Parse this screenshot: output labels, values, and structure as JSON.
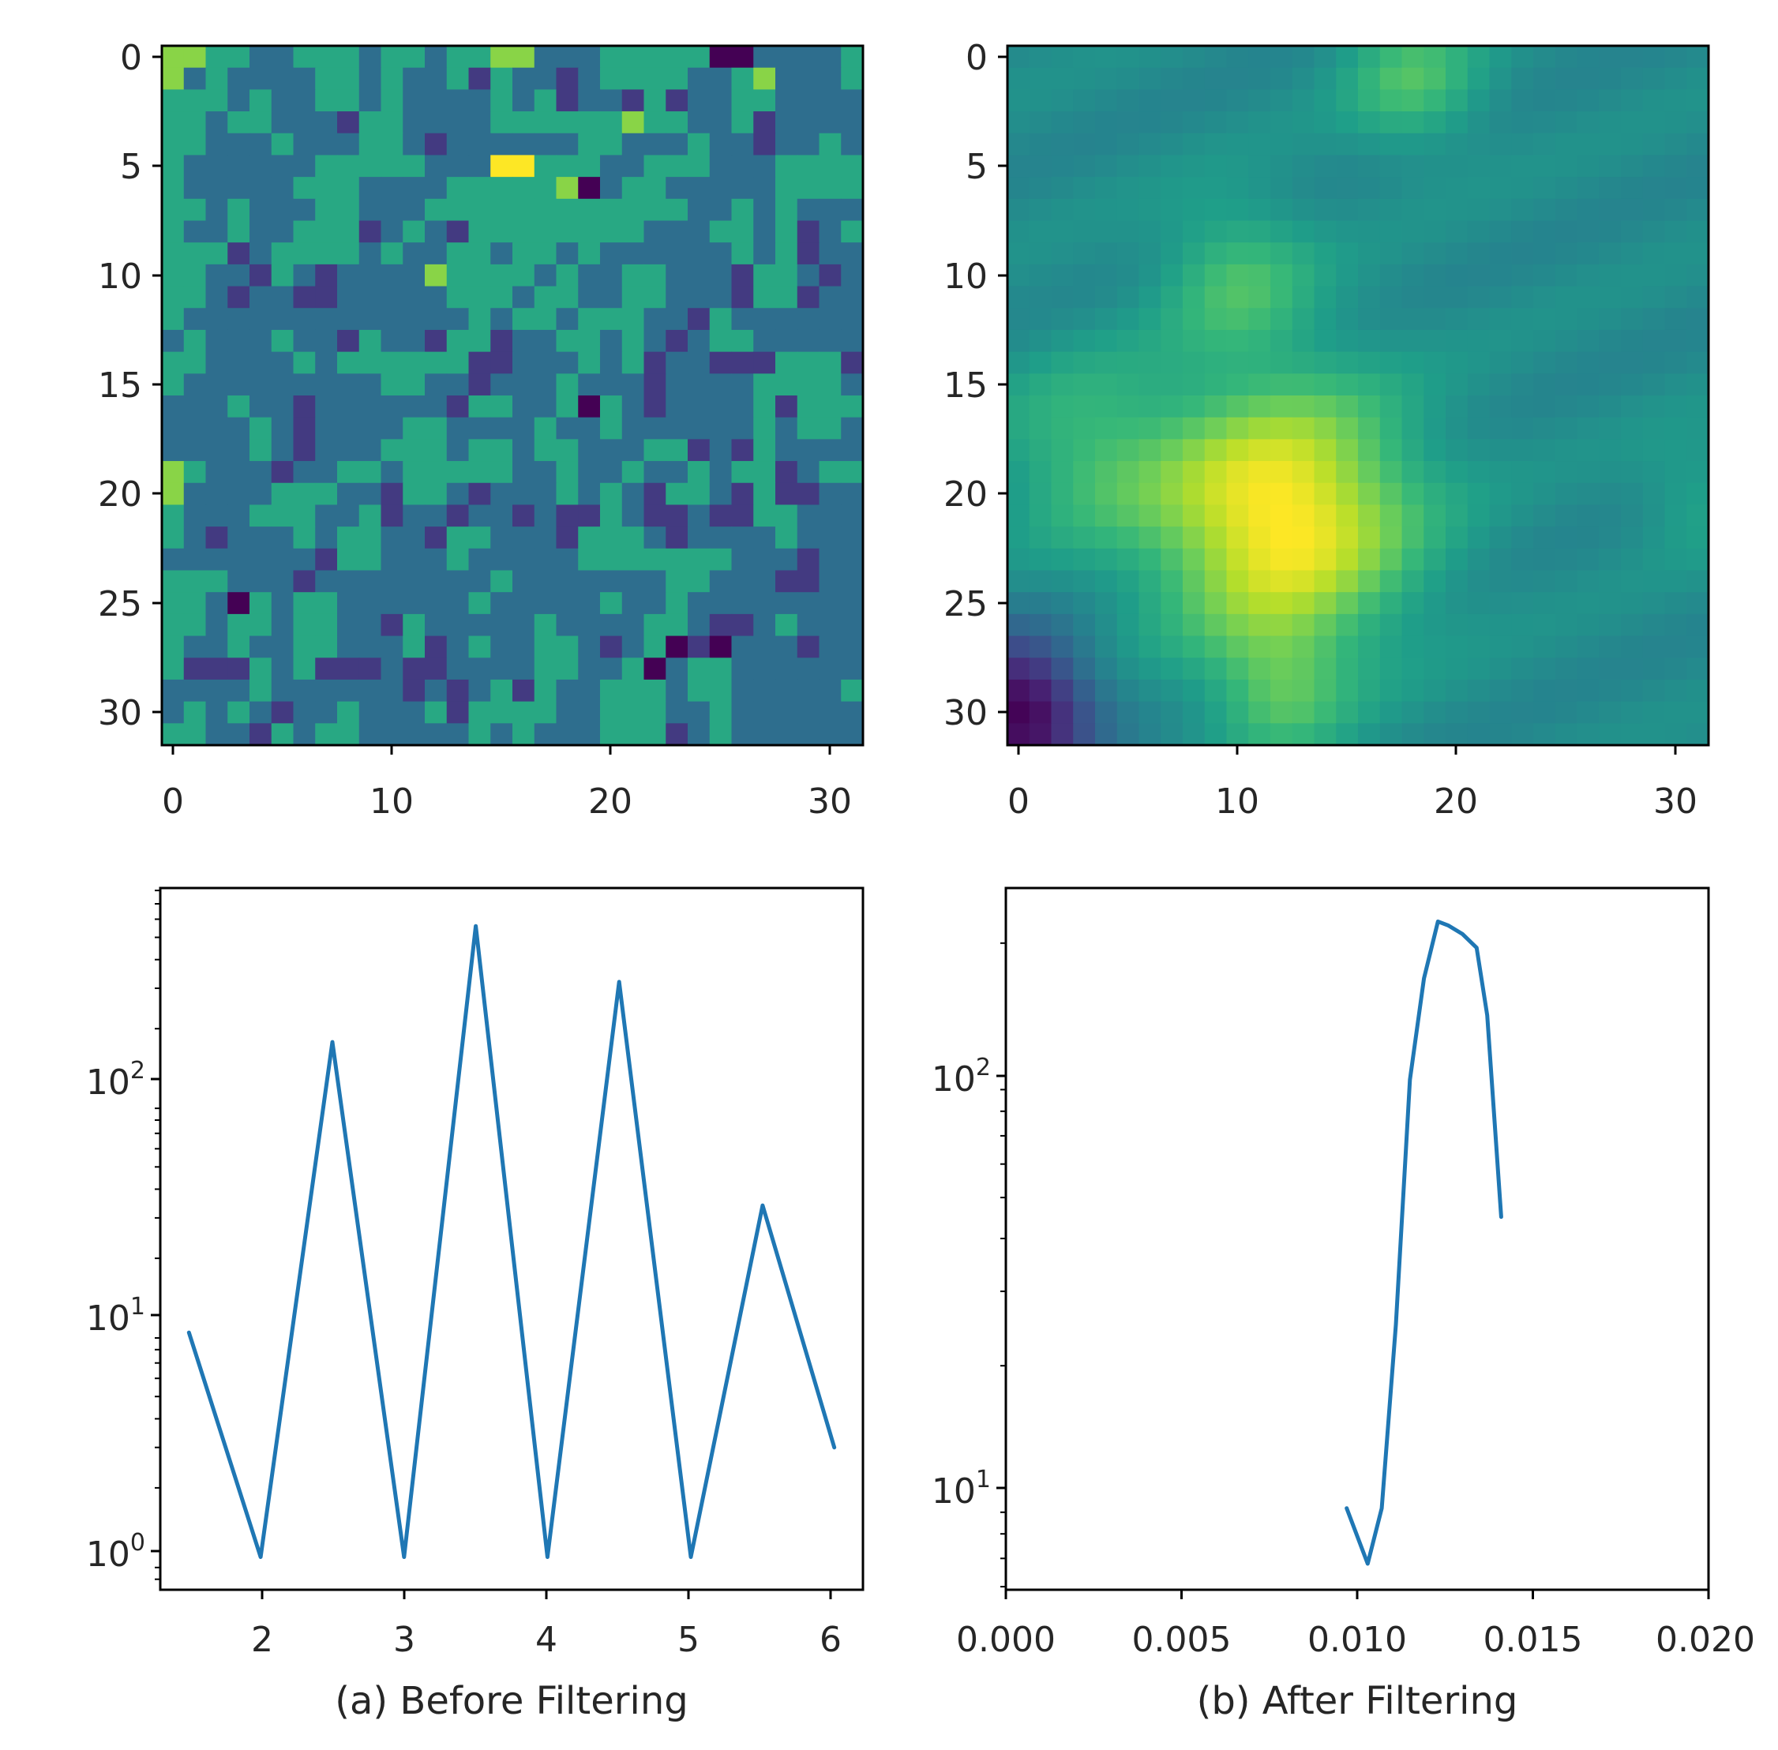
{
  "figure": {
    "caption_a": "(a) Before Filtering",
    "caption_b": "(b) After Filtering"
  },
  "chart_data": [
    {
      "type": "heatmap",
      "panel": "top-left",
      "rows": 32,
      "cols": 32,
      "colormap": "viridis",
      "description_of_data": "discrete noisy field, mostly teal/green values with scattered dark and bright cells",
      "xticks": [
        "0",
        "10",
        "20",
        "30"
      ],
      "yticks": [
        "0",
        "5",
        "10",
        "15",
        "20",
        "25",
        "30"
      ],
      "xlim": [
        -0.5,
        31.5
      ],
      "ylim": [
        31.5,
        -0.5
      ],
      "levels": [
        0,
        1,
        2,
        3,
        4,
        5
      ],
      "bright_cells": [
        [
          5,
          15
        ],
        [
          5,
          16
        ]
      ],
      "dark_cells": [
        [
          0,
          25
        ],
        [
          0,
          26
        ],
        [
          6,
          19
        ],
        [
          16,
          19
        ],
        [
          25,
          3
        ],
        [
          27,
          23
        ],
        [
          27,
          25
        ],
        [
          28,
          22
        ]
      ]
    },
    {
      "type": "heatmap",
      "panel": "top-right",
      "rows": 32,
      "cols": 32,
      "colormap": "viridis",
      "description_of_data": "smoothed field with bright peak near row 21, col 12 and dark corner near row 30, col 0",
      "xticks": [
        "0",
        "10",
        "20",
        "30"
      ],
      "yticks": [
        "0",
        "5",
        "10",
        "15",
        "20",
        "25",
        "30"
      ],
      "xlim": [
        -0.5,
        31.5
      ],
      "ylim": [
        31.5,
        -0.5
      ],
      "peak": [
        21,
        12
      ],
      "secondary_peaks": [
        [
          1,
          18
        ],
        [
          10,
          10
        ],
        [
          29,
          12
        ],
        [
          20,
          31
        ]
      ],
      "low_corner": [
        30,
        0
      ]
    },
    {
      "type": "line",
      "panel": "bottom-left",
      "yscale": "log",
      "x": [
        1.5,
        2.0,
        2.5,
        3.0,
        3.5,
        4.0,
        4.5,
        5.0,
        5.5,
        6.0
      ],
      "y": [
        9.5,
        1,
        175,
        1,
        560,
        1,
        320,
        1,
        34,
        3
      ],
      "xlim": [
        1.3,
        6.2
      ],
      "ylim": [
        0.72,
        820
      ],
      "xticks": [
        "2",
        "3",
        "4",
        "5",
        "6"
      ],
      "ytick_bases": [
        "10",
        "10",
        "10"
      ],
      "ytick_exps": [
        "0",
        "1",
        "2"
      ],
      "xlabel": "(a) Before Filtering"
    },
    {
      "type": "line",
      "panel": "bottom-right",
      "yscale": "log",
      "x": [
        0.0097,
        0.0103,
        0.0107,
        0.0111,
        0.0115,
        0.0119,
        0.0123,
        0.0126,
        0.013,
        0.0134,
        0.0137,
        0.0141
      ],
      "y": [
        9.2,
        6.8,
        9.2,
        25,
        95,
        165,
        225,
        220,
        210,
        195,
        135,
        45
      ],
      "xlim": [
        0,
        0.02
      ],
      "ylim": [
        5.9,
        270
      ],
      "xticks": [
        "0.000",
        "0.005",
        "0.010",
        "0.015",
        "0.020"
      ],
      "ytick_bases": [
        "10",
        "10"
      ],
      "ytick_exps": [
        "1",
        "2"
      ],
      "xlabel": "(b) After Filtering"
    }
  ]
}
